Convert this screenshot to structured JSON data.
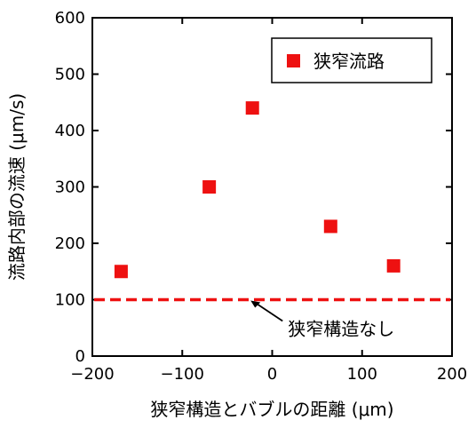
{
  "chart_data": {
    "type": "scatter",
    "xlabel": "狭窄構造とバブルの距離 (μm)",
    "ylabel": "流路内部の流速 (μm/s)",
    "xlim": [
      -200,
      200
    ],
    "ylim": [
      0,
      600
    ],
    "xticks": [
      -200,
      -100,
      0,
      100,
      200
    ],
    "yticks": [
      0,
      100,
      200,
      300,
      400,
      500,
      600
    ],
    "xtick_labels": [
      "−200",
      "−100",
      "0",
      "100",
      "200"
    ],
    "ytick_labels": [
      "0",
      "100",
      "200",
      "300",
      "400",
      "500",
      "600"
    ],
    "series": [
      {
        "name": "狭窄流路",
        "marker": "square",
        "color": "#ee1111",
        "points": [
          {
            "x": -168,
            "y": 150
          },
          {
            "x": -70,
            "y": 300
          },
          {
            "x": -22,
            "y": 440
          },
          {
            "x": 65,
            "y": 230
          },
          {
            "x": 135,
            "y": 160
          }
        ]
      }
    ],
    "reference_lines": [
      {
        "y": 100,
        "style": "dashed",
        "color": "#ee1111",
        "label": "狭窄構造なし"
      }
    ],
    "legend_position": "top-right",
    "grid": false
  }
}
